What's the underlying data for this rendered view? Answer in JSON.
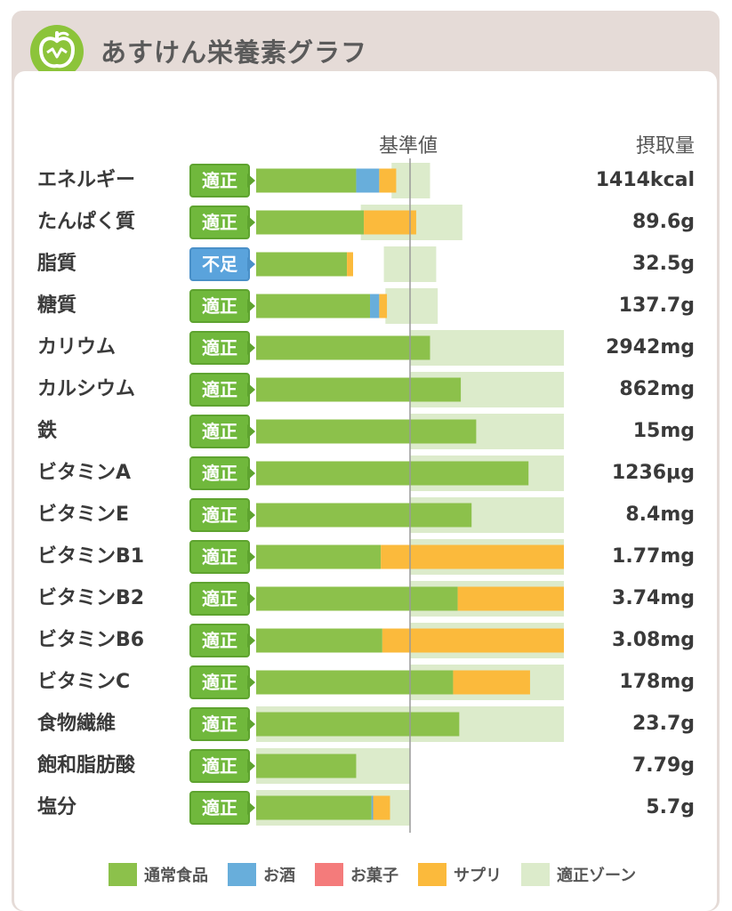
{
  "header": {
    "title": "あすけん栄養素グラフ",
    "icon": "apple-icon"
  },
  "column_headers": {
    "reference": "基準値",
    "intake": "摂取量"
  },
  "colors": {
    "normal_food": "#8cc14b",
    "alcohol": "#68aedb",
    "snacks": "#f47b7b",
    "supplement": "#fbba3c",
    "appropriate_zone": "#dcebcb",
    "status_ok": "#70b83c",
    "status_low": "#5aa3dc"
  },
  "chart_data": {
    "type": "bar",
    "title": "あすけん栄養素グラフ",
    "xlabel": "",
    "ylabel": "",
    "x_unit": "percent of reference value",
    "reference_line": 100,
    "xlim": [
      0,
      200
    ],
    "categories": [
      "エネルギー",
      "たんぱく質",
      "脂質",
      "糖質",
      "カリウム",
      "カルシウム",
      "鉄",
      "ビタミンA",
      "ビタミンE",
      "ビタミンB1",
      "ビタミンB2",
      "ビタミンB6",
      "ビタミンC",
      "食物繊維",
      "飽和脂肪酸",
      "塩分"
    ],
    "statuses": [
      "適正",
      "適正",
      "不足",
      "適正",
      "適正",
      "適正",
      "適正",
      "適正",
      "適正",
      "適正",
      "適正",
      "適正",
      "適正",
      "適正",
      "適正",
      "適正"
    ],
    "status_types": [
      "ok",
      "ok",
      "low",
      "ok",
      "ok",
      "ok",
      "ok",
      "ok",
      "ok",
      "ok",
      "ok",
      "ok",
      "ok",
      "ok",
      "ok",
      "ok"
    ],
    "intake_labels": [
      "1414kcal",
      "89.6g",
      "32.5g",
      "137.7g",
      "2942mg",
      "862mg",
      "15mg",
      "1236μg",
      "8.4mg",
      "1.77mg",
      "3.74mg",
      "3.08mg",
      "178mg",
      "23.7g",
      "7.79g",
      "5.7g"
    ],
    "appropriate_zone": [
      [
        88,
        113
      ],
      [
        68,
        134
      ],
      [
        83,
        117
      ],
      [
        84,
        118
      ],
      [
        100,
        200
      ],
      [
        100,
        200
      ],
      [
        100,
        200
      ],
      [
        100,
        200
      ],
      [
        100,
        200
      ],
      [
        100,
        200
      ],
      [
        100,
        200
      ],
      [
        100,
        200
      ],
      [
        100,
        200
      ],
      [
        0,
        200
      ],
      [
        0,
        100
      ],
      [
        0,
        100
      ]
    ],
    "series": [
      {
        "name": "通常食品",
        "values": [
          65,
          70,
          59,
          74,
          113,
          133,
          143,
          177,
          140,
          81,
          131,
          82,
          128,
          132,
          65,
          75
        ]
      },
      {
        "name": "お酒",
        "values": [
          15,
          0,
          0,
          6,
          0,
          0,
          0,
          0,
          0,
          0,
          0,
          0,
          0,
          0,
          0,
          1
        ]
      },
      {
        "name": "お菓子",
        "values": [
          0,
          0,
          0,
          0,
          0,
          0,
          0,
          0,
          0,
          0,
          0,
          0,
          0,
          0,
          0,
          0
        ]
      },
      {
        "name": "サプリ",
        "values": [
          11,
          34,
          4,
          5,
          0,
          0,
          0,
          0,
          0,
          119,
          69,
          118,
          50,
          0,
          0,
          11
        ]
      }
    ],
    "legend": [
      "通常食品",
      "お酒",
      "お菓子",
      "サプリ",
      "適正ゾーン"
    ],
    "legend_position": "bottom"
  }
}
